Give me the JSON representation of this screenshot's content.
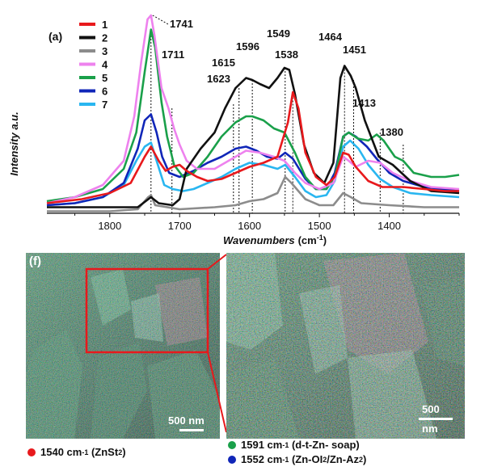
{
  "chart_data": {
    "type": "line",
    "panel_label": "(a)",
    "xlabel": "Wavenumbers",
    "xlabel_unit": "(cm",
    "xlabel_sup": "-1",
    "xlabel_close": ")",
    "ylabel": "Intensity a.u.",
    "xlim": [
      1890,
      1300
    ],
    "x_reversed": true,
    "ylim": [
      0,
      1
    ],
    "x_ticks": [
      1800,
      1700,
      1600,
      1500,
      1400
    ],
    "x_tick_labels": [
      "1800",
      "1700",
      "1600",
      "1500",
      "1400"
    ],
    "peak_markers": [
      {
        "label": "1741",
        "x": 1741,
        "y": 0.88
      },
      {
        "label": "1711",
        "x": 1711,
        "y": 0.52
      },
      {
        "label": "1623",
        "x": 1623,
        "y": 0.54
      },
      {
        "label": "1615",
        "x": 1615,
        "y": 0.62
      },
      {
        "label": "1596",
        "x": 1596,
        "y": 0.66
      },
      {
        "label": "1549",
        "x": 1549,
        "y": 0.72
      },
      {
        "label": "1538",
        "x": 1538,
        "y": 0.59
      },
      {
        "label": "1464",
        "x": 1464,
        "y": 0.73
      },
      {
        "label": "1451",
        "x": 1451,
        "y": 0.66
      },
      {
        "label": "1413",
        "x": 1413,
        "y": 0.4
      },
      {
        "label": "1380",
        "x": 1380,
        "y": 0.34
      }
    ],
    "series": [
      {
        "name": "1",
        "color": "#e8191c",
        "points": [
          [
            1890,
            0.05
          ],
          [
            1840,
            0.07
          ],
          [
            1800,
            0.1
          ],
          [
            1770,
            0.15
          ],
          [
            1750,
            0.28
          ],
          [
            1741,
            0.33
          ],
          [
            1730,
            0.26
          ],
          [
            1720,
            0.21
          ],
          [
            1710,
            0.23
          ],
          [
            1700,
            0.24
          ],
          [
            1690,
            0.21
          ],
          [
            1675,
            0.18
          ],
          [
            1660,
            0.16
          ],
          [
            1640,
            0.17
          ],
          [
            1620,
            0.2
          ],
          [
            1600,
            0.23
          ],
          [
            1580,
            0.25
          ],
          [
            1560,
            0.28
          ],
          [
            1545,
            0.45
          ],
          [
            1538,
            0.6
          ],
          [
            1530,
            0.52
          ],
          [
            1520,
            0.3
          ],
          [
            1505,
            0.18
          ],
          [
            1490,
            0.14
          ],
          [
            1478,
            0.18
          ],
          [
            1466,
            0.3
          ],
          [
            1458,
            0.29
          ],
          [
            1448,
            0.23
          ],
          [
            1430,
            0.16
          ],
          [
            1410,
            0.13
          ],
          [
            1380,
            0.13
          ],
          [
            1350,
            0.12
          ],
          [
            1320,
            0.11
          ],
          [
            1300,
            0.11
          ]
        ]
      },
      {
        "name": "2",
        "color": "#111111",
        "points": [
          [
            1890,
            0.03
          ],
          [
            1800,
            0.03
          ],
          [
            1760,
            0.03
          ],
          [
            1741,
            0.08
          ],
          [
            1730,
            0.05
          ],
          [
            1710,
            0.04
          ],
          [
            1700,
            0.07
          ],
          [
            1690,
            0.22
          ],
          [
            1670,
            0.32
          ],
          [
            1650,
            0.4
          ],
          [
            1635,
            0.52
          ],
          [
            1620,
            0.62
          ],
          [
            1605,
            0.67
          ],
          [
            1596,
            0.66
          ],
          [
            1585,
            0.64
          ],
          [
            1572,
            0.62
          ],
          [
            1560,
            0.67
          ],
          [
            1550,
            0.72
          ],
          [
            1543,
            0.71
          ],
          [
            1535,
            0.59
          ],
          [
            1522,
            0.34
          ],
          [
            1508,
            0.2
          ],
          [
            1493,
            0.15
          ],
          [
            1480,
            0.25
          ],
          [
            1470,
            0.67
          ],
          [
            1464,
            0.73
          ],
          [
            1455,
            0.68
          ],
          [
            1448,
            0.62
          ],
          [
            1435,
            0.46
          ],
          [
            1415,
            0.28
          ],
          [
            1395,
            0.24
          ],
          [
            1370,
            0.16
          ],
          [
            1340,
            0.11
          ],
          [
            1300,
            0.1
          ]
        ]
      },
      {
        "name": "3",
        "color": "#8c8c8c",
        "points": [
          [
            1890,
            0.01
          ],
          [
            1800,
            0.01
          ],
          [
            1760,
            0.02
          ],
          [
            1745,
            0.08
          ],
          [
            1741,
            0.09
          ],
          [
            1735,
            0.04
          ],
          [
            1700,
            0.02
          ],
          [
            1650,
            0.03
          ],
          [
            1620,
            0.04
          ],
          [
            1600,
            0.06
          ],
          [
            1580,
            0.07
          ],
          [
            1560,
            0.1
          ],
          [
            1549,
            0.18
          ],
          [
            1540,
            0.15
          ],
          [
            1520,
            0.07
          ],
          [
            1500,
            0.04
          ],
          [
            1480,
            0.04
          ],
          [
            1466,
            0.1
          ],
          [
            1455,
            0.08
          ],
          [
            1440,
            0.05
          ],
          [
            1400,
            0.04
          ],
          [
            1350,
            0.03
          ],
          [
            1300,
            0.03
          ]
        ]
      },
      {
        "name": "4",
        "color": "#ee82ee",
        "points": [
          [
            1890,
            0.05
          ],
          [
            1850,
            0.08
          ],
          [
            1810,
            0.14
          ],
          [
            1780,
            0.26
          ],
          [
            1765,
            0.48
          ],
          [
            1755,
            0.75
          ],
          [
            1746,
            0.96
          ],
          [
            1741,
            0.98
          ],
          [
            1736,
            0.88
          ],
          [
            1726,
            0.62
          ],
          [
            1716,
            0.52
          ],
          [
            1708,
            0.42
          ],
          [
            1700,
            0.34
          ],
          [
            1690,
            0.26
          ],
          [
            1675,
            0.22
          ],
          [
            1650,
            0.22
          ],
          [
            1625,
            0.27
          ],
          [
            1605,
            0.31
          ],
          [
            1585,
            0.3
          ],
          [
            1565,
            0.28
          ],
          [
            1550,
            0.26
          ],
          [
            1535,
            0.2
          ],
          [
            1520,
            0.15
          ],
          [
            1500,
            0.12
          ],
          [
            1480,
            0.15
          ],
          [
            1466,
            0.28
          ],
          [
            1458,
            0.26
          ],
          [
            1448,
            0.23
          ],
          [
            1430,
            0.26
          ],
          [
            1413,
            0.25
          ],
          [
            1395,
            0.2
          ],
          [
            1370,
            0.16
          ],
          [
            1340,
            0.13
          ],
          [
            1300,
            0.12
          ]
        ]
      },
      {
        "name": "5",
        "color": "#1aa04a",
        "points": [
          [
            1890,
            0.06
          ],
          [
            1850,
            0.08
          ],
          [
            1810,
            0.12
          ],
          [
            1780,
            0.22
          ],
          [
            1762,
            0.4
          ],
          [
            1750,
            0.7
          ],
          [
            1741,
            0.91
          ],
          [
            1735,
            0.82
          ],
          [
            1726,
            0.55
          ],
          [
            1718,
            0.38
          ],
          [
            1708,
            0.24
          ],
          [
            1695,
            0.18
          ],
          [
            1680,
            0.2
          ],
          [
            1660,
            0.28
          ],
          [
            1640,
            0.38
          ],
          [
            1620,
            0.45
          ],
          [
            1605,
            0.48
          ],
          [
            1596,
            0.48
          ],
          [
            1580,
            0.46
          ],
          [
            1565,
            0.42
          ],
          [
            1550,
            0.4
          ],
          [
            1535,
            0.3
          ],
          [
            1520,
            0.18
          ],
          [
            1505,
            0.12
          ],
          [
            1490,
            0.12
          ],
          [
            1478,
            0.18
          ],
          [
            1466,
            0.38
          ],
          [
            1458,
            0.4
          ],
          [
            1445,
            0.37
          ],
          [
            1430,
            0.36
          ],
          [
            1418,
            0.39
          ],
          [
            1408,
            0.36
          ],
          [
            1392,
            0.28
          ],
          [
            1380,
            0.26
          ],
          [
            1365,
            0.2
          ],
          [
            1340,
            0.18
          ],
          [
            1320,
            0.18
          ],
          [
            1300,
            0.19
          ]
        ]
      },
      {
        "name": "6",
        "color": "#1026b8",
        "points": [
          [
            1890,
            0.04
          ],
          [
            1850,
            0.05
          ],
          [
            1810,
            0.08
          ],
          [
            1780,
            0.15
          ],
          [
            1760,
            0.32
          ],
          [
            1750,
            0.46
          ],
          [
            1741,
            0.49
          ],
          [
            1733,
            0.4
          ],
          [
            1725,
            0.28
          ],
          [
            1715,
            0.2
          ],
          [
            1700,
            0.18
          ],
          [
            1680,
            0.21
          ],
          [
            1660,
            0.25
          ],
          [
            1640,
            0.28
          ],
          [
            1620,
            0.32
          ],
          [
            1605,
            0.33
          ],
          [
            1590,
            0.31
          ],
          [
            1575,
            0.28
          ],
          [
            1560,
            0.27
          ],
          [
            1549,
            0.3
          ],
          [
            1538,
            0.27
          ],
          [
            1520,
            0.17
          ],
          [
            1505,
            0.12
          ],
          [
            1490,
            0.12
          ],
          [
            1478,
            0.2
          ],
          [
            1466,
            0.38
          ],
          [
            1458,
            0.4
          ],
          [
            1448,
            0.38
          ],
          [
            1432,
            0.33
          ],
          [
            1418,
            0.27
          ],
          [
            1400,
            0.2
          ],
          [
            1380,
            0.16
          ],
          [
            1350,
            0.13
          ],
          [
            1300,
            0.11
          ]
        ]
      },
      {
        "name": "7",
        "color": "#29b6f0",
        "points": [
          [
            1890,
            0.04
          ],
          [
            1850,
            0.05
          ],
          [
            1810,
            0.08
          ],
          [
            1780,
            0.14
          ],
          [
            1762,
            0.26
          ],
          [
            1750,
            0.33
          ],
          [
            1741,
            0.35
          ],
          [
            1733,
            0.26
          ],
          [
            1722,
            0.14
          ],
          [
            1710,
            0.12
          ],
          [
            1695,
            0.11
          ],
          [
            1680,
            0.12
          ],
          [
            1660,
            0.15
          ],
          [
            1640,
            0.18
          ],
          [
            1620,
            0.22
          ],
          [
            1600,
            0.25
          ],
          [
            1580,
            0.24
          ],
          [
            1560,
            0.22
          ],
          [
            1549,
            0.24
          ],
          [
            1535,
            0.18
          ],
          [
            1520,
            0.11
          ],
          [
            1505,
            0.08
          ],
          [
            1490,
            0.09
          ],
          [
            1478,
            0.16
          ],
          [
            1466,
            0.33
          ],
          [
            1456,
            0.36
          ],
          [
            1444,
            0.32
          ],
          [
            1430,
            0.24
          ],
          [
            1413,
            0.17
          ],
          [
            1395,
            0.13
          ],
          [
            1370,
            0.1
          ],
          [
            1340,
            0.09
          ],
          [
            1300,
            0.08
          ]
        ]
      }
    ]
  },
  "maps": {
    "panel_label": "(f)",
    "left_scalebar": "500 nm",
    "right_scalebar_line1": "500",
    "right_scalebar_line2": "nm",
    "legend": [
      {
        "id": "red",
        "color": "#e8191c",
        "wavenumber": "1540 cm",
        "sup": "-1",
        "assignment": "(ZnSt",
        "sub": "2",
        "tail": ")"
      },
      {
        "id": "green",
        "color": "#1aa04a",
        "wavenumber": "1591 cm",
        "sup": "-1",
        "assignment": "(d-t-Zn- soap)",
        "sub": "",
        "tail": ""
      },
      {
        "id": "blue",
        "color": "#1026b8",
        "wavenumber": "1552 cm",
        "sup": "-1",
        "assignment": "(Zn-OI",
        "sub": "2",
        "tail": " /Zn-Az",
        "sub2": "2",
        "tail2": ")"
      }
    ]
  }
}
